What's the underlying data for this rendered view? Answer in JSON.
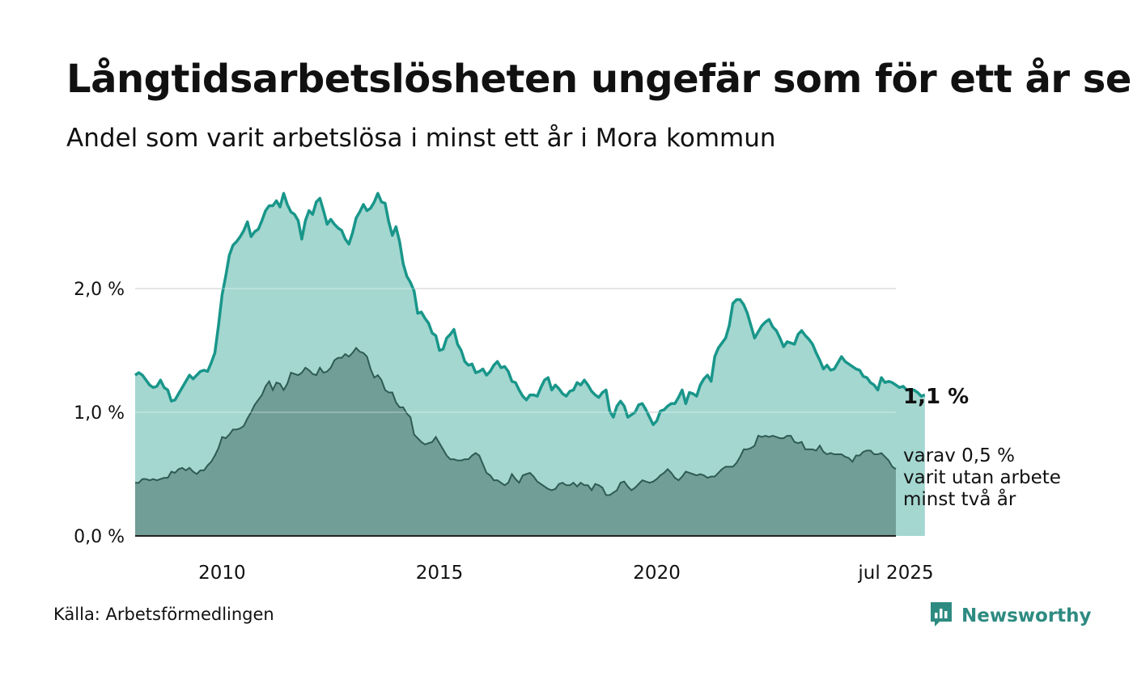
{
  "title": "Långtidsarbetslösheten ungefär som för ett år sen",
  "subtitle": "Andel som varit arbetslösa i minst ett år i Mora kommun",
  "source": "Källa: Arbetsförmedlingen",
  "brand": {
    "name": "Newsworthy",
    "icon": "newsworthy-logo-icon"
  },
  "colors": {
    "total_line": "#19968a",
    "total_fill": "#a4d7d0",
    "long_line": "#2f5b55",
    "long_fill": "#719e96",
    "grid": "#dddddd",
    "brand": "#2e8b81"
  },
  "annotations": {
    "last_total": "1,1 %",
    "long_line1": "varav 0,5 %",
    "long_line2": "varit utan arbete",
    "long_line3": "minst två år"
  },
  "chart_data": {
    "type": "area",
    "x_start": "2008-01",
    "x_end": "2025-07",
    "x_step": "month",
    "ylim": [
      0,
      3.0
    ],
    "yticks": [
      0,
      1,
      2
    ],
    "ytick_labels": [
      "0,0 %",
      "1,0 %",
      "2,0 %"
    ],
    "xticks": [
      "2010-01",
      "2015-01",
      "2020-01",
      "2025-07"
    ],
    "xtick_labels": [
      "2010",
      "2015",
      "2020",
      "jul 2025"
    ],
    "grid": true,
    "legend": "none",
    "series": [
      {
        "key": "total",
        "values": [
          1.3,
          1.32,
          1.3,
          1.26,
          1.22,
          1.2,
          1.21,
          1.26,
          1.2,
          1.18,
          1.09,
          1.1,
          1.15,
          1.2,
          1.25,
          1.3,
          1.27,
          1.3,
          1.33,
          1.34,
          1.33,
          1.4,
          1.48,
          1.7,
          1.95,
          2.1,
          2.27,
          2.35,
          2.38,
          2.42,
          2.47,
          2.54,
          2.42,
          2.46,
          2.48,
          2.55,
          2.63,
          2.67,
          2.67,
          2.71,
          2.66,
          2.77,
          2.68,
          2.62,
          2.6,
          2.55,
          2.4,
          2.55,
          2.63,
          2.6,
          2.7,
          2.73,
          2.63,
          2.52,
          2.56,
          2.52,
          2.49,
          2.47,
          2.4,
          2.36,
          2.45,
          2.57,
          2.62,
          2.68,
          2.63,
          2.65,
          2.7,
          2.77,
          2.7,
          2.69,
          2.54,
          2.43,
          2.5,
          2.38,
          2.2,
          2.1,
          2.05,
          1.98,
          1.8,
          1.81,
          1.76,
          1.72,
          1.64,
          1.62,
          1.5,
          1.51,
          1.6,
          1.63,
          1.67,
          1.55,
          1.5,
          1.41,
          1.38,
          1.39,
          1.32,
          1.33,
          1.35,
          1.3,
          1.33,
          1.38,
          1.41,
          1.36,
          1.37,
          1.33,
          1.25,
          1.24,
          1.18,
          1.13,
          1.1,
          1.14,
          1.14,
          1.13,
          1.2,
          1.26,
          1.28,
          1.18,
          1.22,
          1.19,
          1.15,
          1.13,
          1.17,
          1.18,
          1.24,
          1.22,
          1.26,
          1.22,
          1.17,
          1.14,
          1.12,
          1.16,
          1.18,
          1.01,
          0.96,
          1.05,
          1.09,
          1.05,
          0.96,
          0.98,
          1.0,
          1.06,
          1.07,
          1.02,
          0.96,
          0.9,
          0.93,
          1.01,
          1.02,
          1.05,
          1.07,
          1.07,
          1.12,
          1.18,
          1.07,
          1.16,
          1.15,
          1.13,
          1.22,
          1.27,
          1.3,
          1.25,
          1.45,
          1.52,
          1.56,
          1.6,
          1.7,
          1.88,
          1.91,
          1.91,
          1.87,
          1.8,
          1.7,
          1.6,
          1.65,
          1.7,
          1.73,
          1.75,
          1.69,
          1.66,
          1.6,
          1.53,
          1.57,
          1.56,
          1.55,
          1.63,
          1.66,
          1.62,
          1.59,
          1.55,
          1.48,
          1.42,
          1.35,
          1.38,
          1.34,
          1.35,
          1.4,
          1.45,
          1.41,
          1.39,
          1.37,
          1.35,
          1.34,
          1.29,
          1.28,
          1.24,
          1.22,
          1.18,
          1.28,
          1.24,
          1.25,
          1.24,
          1.22,
          1.2,
          1.21,
          1.18,
          1.18,
          1.18,
          1.16,
          1.13,
          1.14
        ]
      },
      {
        "key": "long",
        "values": [
          0.43,
          0.43,
          0.46,
          0.46,
          0.45,
          0.46,
          0.45,
          0.46,
          0.47,
          0.47,
          0.52,
          0.51,
          0.54,
          0.55,
          0.53,
          0.55,
          0.52,
          0.5,
          0.53,
          0.53,
          0.57,
          0.6,
          0.65,
          0.71,
          0.8,
          0.79,
          0.82,
          0.86,
          0.86,
          0.87,
          0.89,
          0.95,
          1.0,
          1.06,
          1.1,
          1.14,
          1.21,
          1.25,
          1.18,
          1.24,
          1.23,
          1.18,
          1.23,
          1.32,
          1.31,
          1.3,
          1.32,
          1.36,
          1.34,
          1.31,
          1.3,
          1.36,
          1.32,
          1.33,
          1.36,
          1.42,
          1.44,
          1.44,
          1.47,
          1.45,
          1.48,
          1.52,
          1.49,
          1.48,
          1.45,
          1.35,
          1.28,
          1.3,
          1.26,
          1.18,
          1.16,
          1.16,
          1.08,
          1.04,
          1.04,
          0.99,
          0.96,
          0.82,
          0.79,
          0.76,
          0.74,
          0.75,
          0.76,
          0.8,
          0.75,
          0.7,
          0.65,
          0.62,
          0.62,
          0.61,
          0.61,
          0.62,
          0.62,
          0.65,
          0.67,
          0.65,
          0.58,
          0.51,
          0.49,
          0.45,
          0.45,
          0.43,
          0.41,
          0.43,
          0.5,
          0.46,
          0.43,
          0.49,
          0.5,
          0.51,
          0.48,
          0.44,
          0.42,
          0.4,
          0.38,
          0.37,
          0.38,
          0.42,
          0.43,
          0.41,
          0.41,
          0.43,
          0.4,
          0.43,
          0.41,
          0.41,
          0.37,
          0.42,
          0.41,
          0.39,
          0.33,
          0.33,
          0.35,
          0.37,
          0.43,
          0.44,
          0.4,
          0.37,
          0.39,
          0.42,
          0.45,
          0.44,
          0.43,
          0.44,
          0.46,
          0.49,
          0.51,
          0.54,
          0.51,
          0.47,
          0.45,
          0.48,
          0.52,
          0.51,
          0.5,
          0.49,
          0.5,
          0.49,
          0.47,
          0.48,
          0.48,
          0.51,
          0.54,
          0.56,
          0.56,
          0.56,
          0.59,
          0.64,
          0.7,
          0.7,
          0.71,
          0.73,
          0.81,
          0.8,
          0.81,
          0.8,
          0.81,
          0.8,
          0.79,
          0.79,
          0.81,
          0.81,
          0.76,
          0.75,
          0.76,
          0.7,
          0.7,
          0.7,
          0.69,
          0.73,
          0.68,
          0.66,
          0.67,
          0.66,
          0.66,
          0.66,
          0.64,
          0.63,
          0.6,
          0.65,
          0.65,
          0.68,
          0.69,
          0.69,
          0.66,
          0.66,
          0.67,
          0.64,
          0.61,
          0.56,
          0.54
        ]
      }
    ]
  }
}
